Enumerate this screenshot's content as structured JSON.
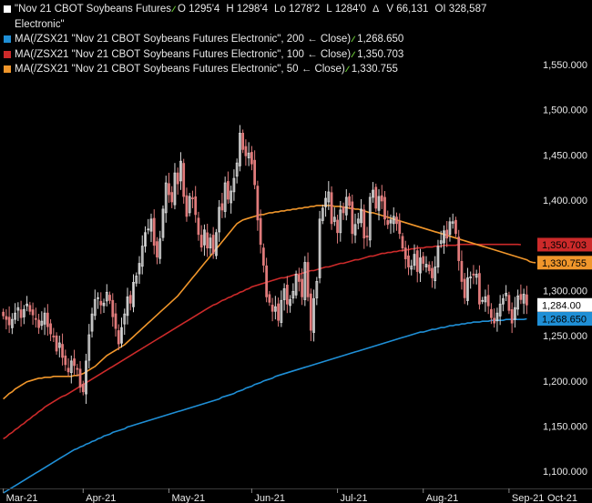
{
  "legend": {
    "title_line1": "\"Nov 21 CBOT Soybeans Futures",
    "title_line2": "Electronic\"",
    "o_label": "O",
    "o_value": "1295'4",
    "h_label": "H",
    "h_value": "1298'4",
    "lo_label": "Lo",
    "lo_value": "1278'2",
    "l_label": "L",
    "l_value": "1284'0",
    "delta_symbol": "Δ",
    "v_label": "V",
    "v_value": "66,131",
    "oi_label": "OI",
    "oi_value": "328,587",
    "ma200_text": "MA(/ZSX21 \"Nov 21 CBOT Soybeans Futures Electronic\", 200 ← Close)",
    "ma200_value": "1,268.650",
    "ma100_text": "MA(/ZSX21 \"Nov 21 CBOT Soybeans Futures Electronic\", 100 ← Close)",
    "ma100_value": "1,350.703",
    "ma50_text": "MA(/ZSX21 \"Nov 21 CBOT Soybeans Futures Electronic\", 50 ← Close)",
    "ma50_value": "1,330.755"
  },
  "colors": {
    "background": "#000000",
    "up_candle": "#d8d8d8",
    "down_candle": "#e07b7b",
    "ma200": "#1f8fd6",
    "ma100": "#cc2a2a",
    "ma50": "#f0962b",
    "indicator_icon": "#6fcf3a",
    "price_tag": "#ffffff",
    "price_tag_text": "#000000"
  },
  "chart_data": {
    "type": "candlestick",
    "ylim": [
      1075,
      1560
    ],
    "yticks": [
      {
        "value": 1550,
        "label": "1,550.000"
      },
      {
        "value": 1500,
        "label": "1,500.000"
      },
      {
        "value": 1450,
        "label": "1,450.000"
      },
      {
        "value": 1400,
        "label": "1,400.000"
      },
      {
        "value": 1350,
        "label": "1,350.000"
      },
      {
        "value": 1300,
        "label": "1,300.000"
      },
      {
        "value": 1250,
        "label": "1,250.000"
      },
      {
        "value": 1200,
        "label": "1,200.000"
      },
      {
        "value": 1150,
        "label": "1,150.000"
      },
      {
        "value": 1100,
        "label": "1,100.000"
      }
    ],
    "xticks": [
      {
        "index": 0,
        "label": "Mar-21"
      },
      {
        "index": 27,
        "label": "Apr-21"
      },
      {
        "index": 56,
        "label": "May-21"
      },
      {
        "index": 84,
        "label": "Jun-21"
      },
      {
        "index": 113,
        "label": "Jul-21"
      },
      {
        "index": 142,
        "label": "Aug-21"
      },
      {
        "index": 171,
        "label": "Sep-21"
      }
    ],
    "x_last_tag": "Oct-21",
    "last_price_label": "1,284.00",
    "ma200_label": "1,268.650",
    "ma100_label": "1,350.703",
    "ma50_label": "1,330.755",
    "closes": [
      1272,
      1268,
      1262,
      1268,
      1275,
      1281,
      1270,
      1279,
      1285,
      1277,
      1273,
      1268,
      1259,
      1266,
      1275,
      1260,
      1252,
      1249,
      1233,
      1242,
      1226,
      1218,
      1210,
      1222,
      1217,
      1213,
      1193,
      1188,
      1222,
      1251,
      1274,
      1290,
      1292,
      1284,
      1286,
      1298,
      1289,
      1271,
      1258,
      1241,
      1259,
      1274,
      1293,
      1286,
      1309,
      1316,
      1330,
      1349,
      1364,
      1368,
      1379,
      1350,
      1337,
      1357,
      1390,
      1419,
      1406,
      1398,
      1430,
      1418,
      1443,
      1404,
      1382,
      1404,
      1402,
      1384,
      1362,
      1348,
      1367,
      1347,
      1358,
      1341,
      1364,
      1392,
      1389,
      1419,
      1401,
      1410,
      1424,
      1441,
      1474,
      1456,
      1449,
      1452,
      1440,
      1417,
      1378,
      1351,
      1328,
      1293,
      1287,
      1277,
      1282,
      1267,
      1289,
      1302,
      1285,
      1290,
      1299,
      1318,
      1310,
      1293,
      1331,
      1293,
      1256,
      1291,
      1310,
      1379,
      1391,
      1402,
      1409,
      1374,
      1381,
      1364,
      1389,
      1386,
      1403,
      1394,
      1363,
      1373,
      1379,
      1390,
      1358,
      1359,
      1403,
      1411,
      1391,
      1404,
      1399,
      1379,
      1373,
      1378,
      1382,
      1374,
      1363,
      1347,
      1335,
      1326,
      1327,
      1340,
      1321,
      1336,
      1330,
      1329,
      1322,
      1314,
      1326,
      1349,
      1355,
      1366,
      1358,
      1376,
      1376,
      1363,
      1333,
      1310,
      1292,
      1314,
      1315,
      1317,
      1318,
      1285,
      1289,
      1293,
      1283,
      1270,
      1264,
      1275,
      1285,
      1291,
      1297,
      1278,
      1264,
      1281,
      1294,
      1290,
      1296,
      1284
    ],
    "ma200": [
      1076,
      1078,
      1080,
      1082,
      1084,
      1086,
      1088,
      1090,
      1092,
      1094,
      1096,
      1098,
      1100,
      1102,
      1104,
      1106,
      1108,
      1110,
      1112,
      1114,
      1116,
      1118,
      1120,
      1122,
      1124,
      1125,
      1127,
      1128,
      1130,
      1131,
      1133,
      1134,
      1136,
      1137,
      1139,
      1140,
      1141,
      1143,
      1144,
      1145,
      1146,
      1147,
      1149,
      1150,
      1151,
      1152,
      1153,
      1154,
      1155,
      1156,
      1157,
      1158,
      1159,
      1160,
      1161,
      1162,
      1163,
      1164,
      1165,
      1166,
      1167,
      1168,
      1169,
      1170,
      1171,
      1172,
      1173,
      1174,
      1175,
      1176,
      1177,
      1178,
      1179,
      1180,
      1182,
      1183,
      1184,
      1185,
      1186,
      1188,
      1189,
      1190,
      1192,
      1193,
      1194,
      1196,
      1197,
      1198,
      1200,
      1201,
      1202,
      1203,
      1205,
      1206,
      1207,
      1208,
      1209,
      1210,
      1211,
      1212,
      1213,
      1214,
      1215,
      1216,
      1217,
      1218,
      1219,
      1220,
      1221,
      1222,
      1223,
      1224,
      1225,
      1226,
      1227,
      1228,
      1229,
      1230,
      1231,
      1232,
      1233,
      1234,
      1235,
      1236,
      1237,
      1238,
      1239,
      1240,
      1241,
      1242,
      1243,
      1244,
      1245,
      1246,
      1247,
      1248,
      1249,
      1250,
      1251,
      1252,
      1253,
      1254,
      1254,
      1255,
      1256,
      1257,
      1257,
      1258,
      1259,
      1259,
      1260,
      1261,
      1261,
      1262,
      1262,
      1263,
      1263,
      1264,
      1264,
      1265,
      1265,
      1265,
      1266,
      1266,
      1266,
      1267,
      1267,
      1267,
      1267,
      1267,
      1268,
      1268,
      1268,
      1268,
      1268,
      1268,
      1268,
      1268.65
    ],
    "ma100": [
      1136,
      1138,
      1141,
      1143,
      1146,
      1148,
      1151,
      1153,
      1156,
      1158,
      1161,
      1163,
      1166,
      1168,
      1171,
      1173,
      1175,
      1177,
      1179,
      1181,
      1183,
      1184,
      1186,
      1188,
      1190,
      1192,
      1194,
      1196,
      1198,
      1200,
      1202,
      1204,
      1206,
      1208,
      1210,
      1212,
      1214,
      1216,
      1218,
      1220,
      1222,
      1224,
      1226,
      1228,
      1230,
      1232,
      1234,
      1236,
      1238,
      1240,
      1242,
      1244,
      1246,
      1248,
      1250,
      1252,
      1254,
      1256,
      1258,
      1260,
      1262,
      1264,
      1266,
      1268,
      1270,
      1272,
      1274,
      1276,
      1278,
      1280,
      1282,
      1284,
      1285,
      1287,
      1289,
      1290,
      1292,
      1293,
      1295,
      1296,
      1298,
      1299,
      1301,
      1302,
      1304,
      1305,
      1306,
      1307,
      1308,
      1309,
      1310,
      1311,
      1312,
      1313,
      1314,
      1314,
      1315,
      1316,
      1317,
      1318,
      1318,
      1319,
      1320,
      1321,
      1322,
      1322,
      1323,
      1324,
      1325,
      1326,
      1326,
      1327,
      1328,
      1329,
      1330,
      1330,
      1331,
      1332,
      1333,
      1334,
      1334,
      1335,
      1336,
      1337,
      1338,
      1338,
      1339,
      1340,
      1341,
      1341,
      1342,
      1342,
      1343,
      1343,
      1344,
      1344,
      1345,
      1345,
      1346,
      1346,
      1347,
      1347,
      1347,
      1348,
      1348,
      1348,
      1349,
      1349,
      1349,
      1350,
      1350,
      1350,
      1350,
      1350,
      1351,
      1351,
      1351,
      1351,
      1351,
      1351,
      1351,
      1351,
      1351,
      1351,
      1351,
      1351,
      1351,
      1351,
      1351,
      1351,
      1351,
      1351,
      1351,
      1351,
      1351,
      1350.703
    ],
    "ma50": [
      1180,
      1183,
      1186,
      1188,
      1191,
      1193,
      1195,
      1197,
      1199,
      1200,
      1201,
      1202,
      1203,
      1203,
      1204,
      1204,
      1204,
      1205,
      1205,
      1205,
      1205,
      1205,
      1205,
      1205,
      1206,
      1206,
      1207,
      1208,
      1210,
      1212,
      1214,
      1216,
      1219,
      1222,
      1225,
      1228,
      1230,
      1232,
      1234,
      1236,
      1238,
      1240,
      1243,
      1246,
      1249,
      1252,
      1255,
      1258,
      1261,
      1264,
      1267,
      1270,
      1273,
      1276,
      1279,
      1282,
      1285,
      1288,
      1291,
      1294,
      1298,
      1302,
      1306,
      1310,
      1314,
      1318,
      1322,
      1326,
      1330,
      1334,
      1338,
      1342,
      1346,
      1350,
      1354,
      1358,
      1362,
      1366,
      1370,
      1374,
      1376,
      1378,
      1379,
      1380,
      1381,
      1382,
      1383,
      1384,
      1384,
      1385,
      1386,
      1386,
      1387,
      1387,
      1388,
      1388,
      1389,
      1389,
      1390,
      1390,
      1391,
      1391,
      1392,
      1392,
      1393,
      1393,
      1394,
      1394,
      1394,
      1394,
      1394,
      1394,
      1393,
      1393,
      1393,
      1392,
      1392,
      1391,
      1391,
      1390,
      1390,
      1389,
      1388,
      1387,
      1386,
      1386,
      1385,
      1384,
      1383,
      1382,
      1381,
      1380,
      1379,
      1378,
      1377,
      1376,
      1375,
      1374,
      1373,
      1372,
      1371,
      1370,
      1369,
      1368,
      1367,
      1366,
      1365,
      1364,
      1363,
      1362,
      1361,
      1360,
      1359,
      1358,
      1357,
      1356,
      1355,
      1354,
      1353,
      1352,
      1351,
      1350,
      1349,
      1348,
      1347,
      1346,
      1345,
      1344,
      1343,
      1342,
      1341,
      1340,
      1339,
      1338,
      1337,
      1336,
      1335,
      1334,
      1332,
      1331,
      1330.755
    ]
  }
}
